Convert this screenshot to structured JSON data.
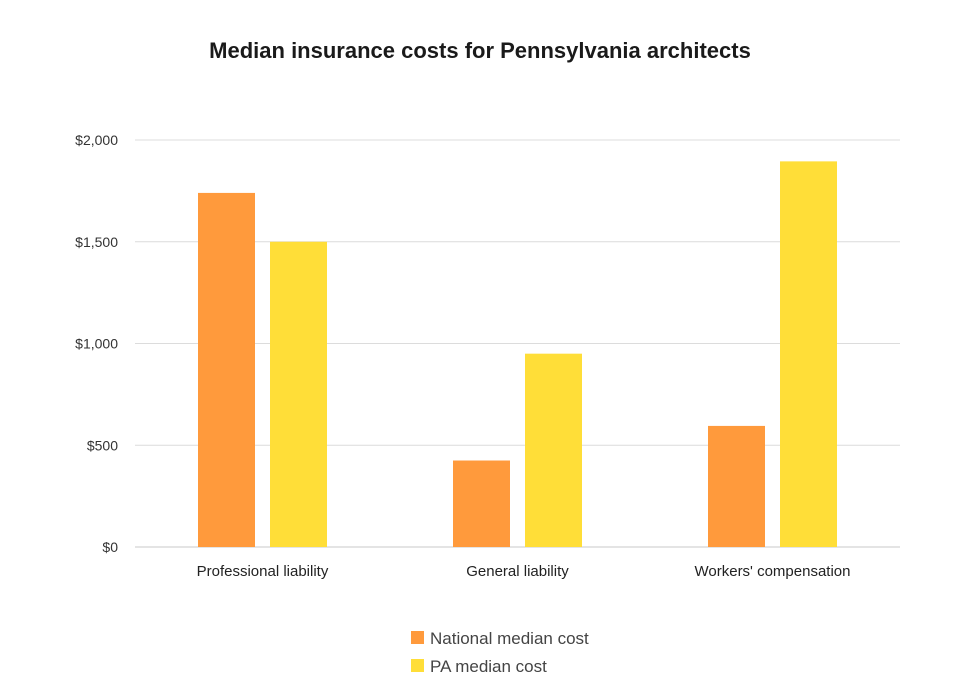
{
  "chart_data": {
    "type": "bar",
    "title": "Median insurance costs for Pennsylvania architects",
    "categories": [
      "Professional liability",
      "General liability",
      "Workers' compensation"
    ],
    "series": [
      {
        "name": "National median cost",
        "color": "#FF9A3C",
        "values": [
          1740,
          425,
          595
        ]
      },
      {
        "name": "PA median cost",
        "color": "#FFDE38",
        "values": [
          1500,
          950,
          1895
        ]
      }
    ],
    "y_ticks": [
      "$0",
      "$500",
      "$1,000",
      "$1,500",
      "$2,000"
    ],
    "y_tick_values": [
      0,
      500,
      1000,
      1500,
      2000
    ],
    "ylim": [
      0,
      2000
    ],
    "xlabel": "",
    "ylabel": "",
    "grid": true,
    "legend_position": "bottom"
  }
}
